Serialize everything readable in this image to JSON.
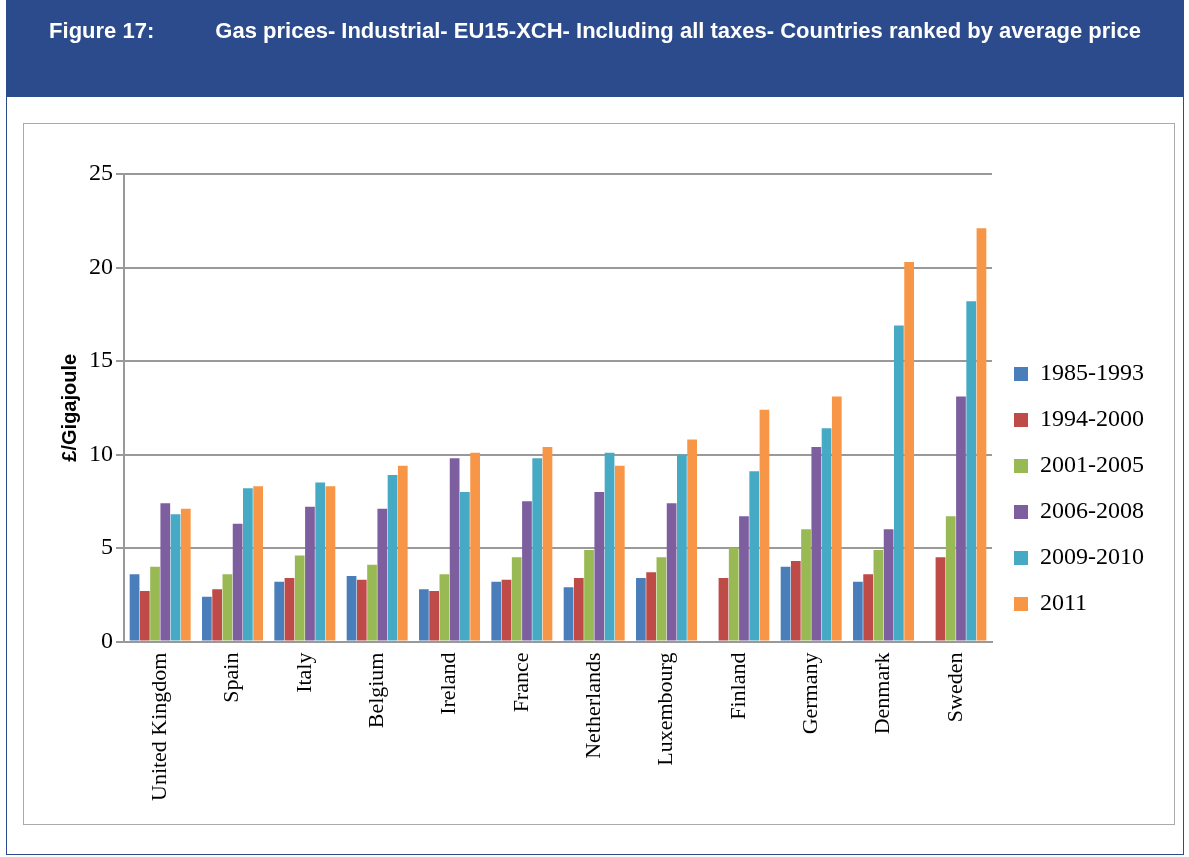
{
  "chart_data": {
    "type": "bar",
    "title": "Figure 17:          Gas prices- Industrial- EU15-XCH- Including all taxes- Countries ranked by average price",
    "ylabel": "£/Gigajoule",
    "categories": [
      "United Kingdom",
      "Spain",
      "Italy",
      "Belgium",
      "Ireland",
      "France",
      "Netherlands",
      "Luxembourg",
      "Finland",
      "Germany",
      "Denmark",
      "Sweden"
    ],
    "series": [
      {
        "name": "1985-1993",
        "color": "#4a7ebb",
        "values": [
          3.6,
          2.4,
          3.2,
          3.5,
          2.8,
          3.2,
          2.9,
          3.4,
          null,
          4.0,
          3.2,
          null
        ]
      },
      {
        "name": "1994-2000",
        "color": "#be4b48",
        "values": [
          2.7,
          2.8,
          3.4,
          3.3,
          2.7,
          3.3,
          3.4,
          3.7,
          3.4,
          4.3,
          3.6,
          4.5
        ]
      },
      {
        "name": "2001-2005",
        "color": "#98b954",
        "values": [
          4.0,
          3.6,
          4.6,
          4.1,
          3.6,
          4.5,
          4.9,
          4.5,
          5.0,
          6.0,
          4.9,
          6.7
        ]
      },
      {
        "name": "2006-2008",
        "color": "#7d5fa0",
        "values": [
          7.4,
          6.3,
          7.2,
          7.1,
          9.8,
          7.5,
          8.0,
          7.4,
          6.7,
          10.4,
          6.0,
          13.1
        ]
      },
      {
        "name": "2009-2010",
        "color": "#46aac5",
        "values": [
          6.8,
          8.2,
          8.5,
          8.9,
          8.0,
          9.8,
          10.1,
          10.0,
          9.1,
          11.4,
          16.9,
          18.2
        ]
      },
      {
        "name": "2011",
        "color": "#f79646",
        "values": [
          7.1,
          8.3,
          8.3,
          9.4,
          10.1,
          10.4,
          9.4,
          10.8,
          12.4,
          13.1,
          20.3,
          22.1
        ]
      }
    ],
    "ylim": [
      0,
      25
    ],
    "yticks": [
      0,
      5,
      10,
      15,
      20,
      25
    ],
    "grid": "y",
    "legend": "right"
  }
}
